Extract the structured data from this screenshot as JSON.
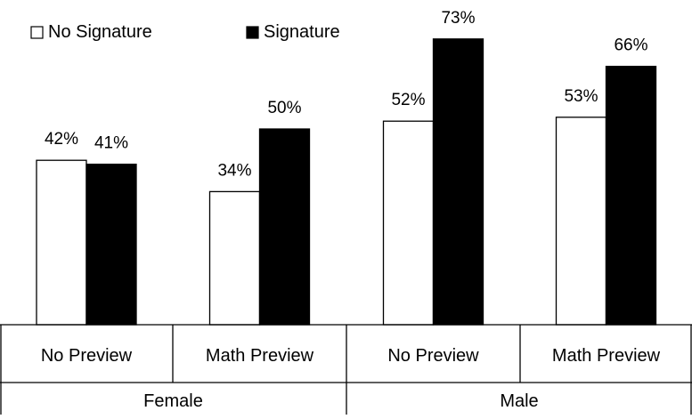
{
  "chart_data": {
    "type": "bar",
    "title": "",
    "xlabel": "",
    "ylabel": "",
    "ylim": [
      0,
      80
    ],
    "grid": false,
    "legend_position": "top-left",
    "groups": [
      "Female",
      "Male"
    ],
    "categories": [
      "No Preview",
      "Math Preview",
      "No Preview",
      "Math Preview"
    ],
    "series": [
      {
        "name": "No Signature",
        "values": [
          42,
          34,
          52,
          53
        ],
        "labels": [
          "42%",
          "34%",
          "52%",
          "53%"
        ],
        "color": "#ffffff"
      },
      {
        "name": "Signature",
        "values": [
          41,
          50,
          73,
          66
        ],
        "labels": [
          "41%",
          "50%",
          "73%",
          "66%"
        ],
        "color": "#000000"
      }
    ]
  },
  "legend": {
    "no_signature": "No Signature",
    "signature": "Signature"
  }
}
